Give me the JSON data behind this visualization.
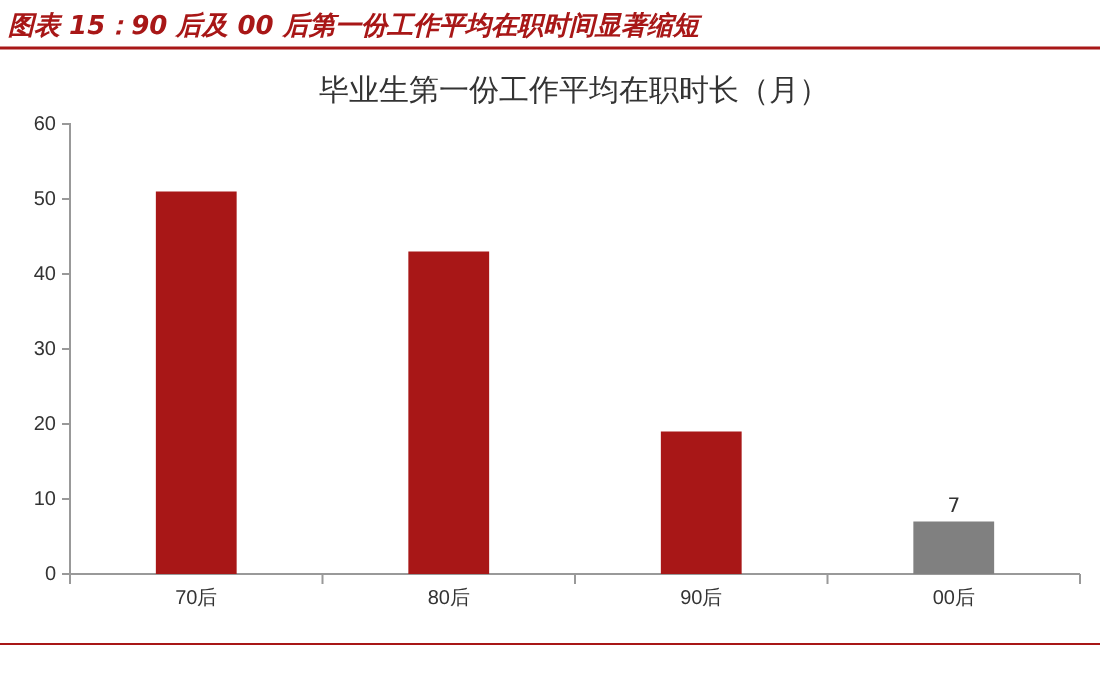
{
  "chart_data": {
    "type": "bar",
    "title": "图表 15：90 后及 00 后第一份工作平均在职时间显著缩短",
    "subtitle": "毕业生第一份工作平均在职时长（月）",
    "categories": [
      "70后",
      "80后",
      "90后",
      "00后"
    ],
    "values": [
      51,
      43,
      19,
      7
    ],
    "colors": [
      "#a81717",
      "#a81717",
      "#a81717",
      "#808080"
    ],
    "value_labels": [
      null,
      null,
      null,
      "7"
    ],
    "ylim": [
      0,
      60
    ],
    "yticks": [
      0,
      10,
      20,
      30,
      40,
      50,
      60
    ],
    "grid": false
  }
}
